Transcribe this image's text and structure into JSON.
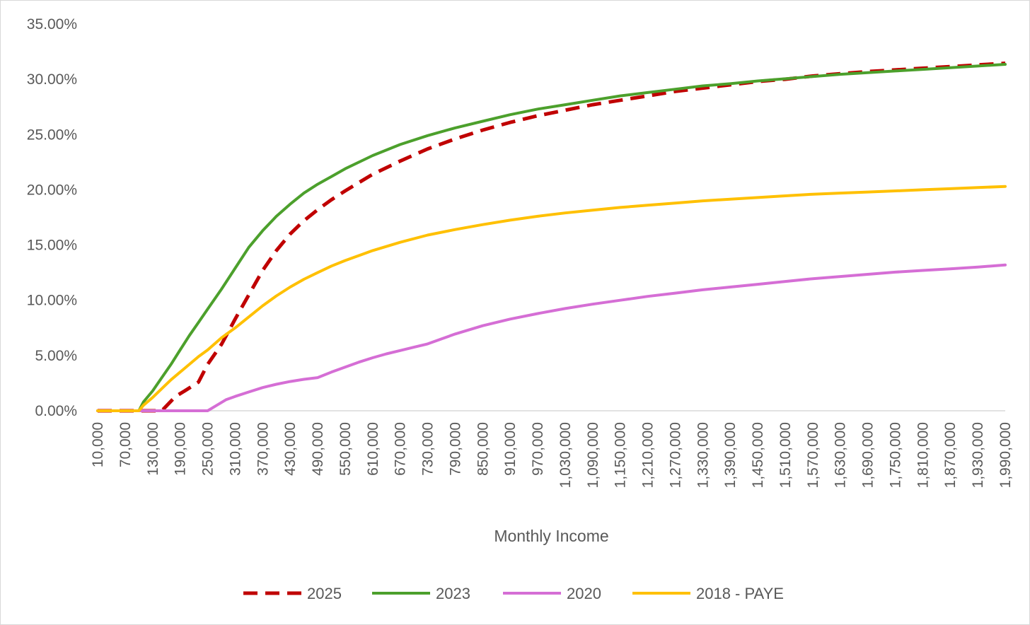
{
  "chart_data": {
    "type": "line",
    "title": "",
    "xlabel": "Monthly Income",
    "ylabel": "",
    "x_tick_labels": [
      "10,000",
      "70,000",
      "130,000",
      "190,000",
      "250,000",
      "310,000",
      "370,000",
      "430,000",
      "490,000",
      "550,000",
      "610,000",
      "670,000",
      "730,000",
      "790,000",
      "850,000",
      "910,000",
      "970,000",
      "1,030,000",
      "1,090,000",
      "1,150,000",
      "1,210,000",
      "1,270,000",
      "1,330,000",
      "1,390,000",
      "1,450,000",
      "1,510,000",
      "1,570,000",
      "1,630,000",
      "1,690,000",
      "1,750,000",
      "1,810,000",
      "1,870,000",
      "1,930,000",
      "1,990,000"
    ],
    "y_tick_labels": [
      "0.00%",
      "5.00%",
      "10.00%",
      "15.00%",
      "20.00%",
      "25.00%",
      "30.00%",
      "35.00%"
    ],
    "xlim": [
      10000,
      1990000
    ],
    "ylim": [
      0,
      35
    ],
    "y_unit": "%",
    "grid": false,
    "legend_position": "bottom",
    "series": [
      {
        "name": "2025",
        "color": "#C00000",
        "dashed": true,
        "points": [
          [
            10000,
            0
          ],
          [
            100000,
            0
          ],
          [
            150000,
            0
          ],
          [
            180000,
            1.3
          ],
          [
            200000,
            1.8
          ],
          [
            230000,
            2.6
          ],
          [
            250000,
            4.2
          ],
          [
            280000,
            6.0
          ],
          [
            310000,
            8.3
          ],
          [
            340000,
            10.5
          ],
          [
            370000,
            12.7
          ],
          [
            400000,
            14.5
          ],
          [
            430000,
            16.0
          ],
          [
            460000,
            17.2
          ],
          [
            490000,
            18.2
          ],
          [
            520000,
            19.1
          ],
          [
            550000,
            19.9
          ],
          [
            610000,
            21.4
          ],
          [
            670000,
            22.6
          ],
          [
            730000,
            23.7
          ],
          [
            790000,
            24.6
          ],
          [
            850000,
            25.4
          ],
          [
            910000,
            26.1
          ],
          [
            970000,
            26.7
          ],
          [
            1030000,
            27.2
          ],
          [
            1090000,
            27.7
          ],
          [
            1150000,
            28.1
          ],
          [
            1210000,
            28.5
          ],
          [
            1270000,
            28.9
          ],
          [
            1330000,
            29.2
          ],
          [
            1390000,
            29.5
          ],
          [
            1450000,
            29.8
          ],
          [
            1510000,
            30.0
          ],
          [
            1570000,
            30.3
          ],
          [
            1630000,
            30.5
          ],
          [
            1690000,
            30.7
          ],
          [
            1750000,
            30.85
          ],
          [
            1810000,
            31.0
          ],
          [
            1870000,
            31.15
          ],
          [
            1930000,
            31.3
          ],
          [
            1990000,
            31.45
          ]
        ]
      },
      {
        "name": "2023",
        "color": "#4CA02C",
        "dashed": false,
        "points": [
          [
            10000,
            0
          ],
          [
            100000,
            0
          ],
          [
            110000,
            0.8
          ],
          [
            130000,
            1.8
          ],
          [
            150000,
            3.0
          ],
          [
            170000,
            4.2
          ],
          [
            190000,
            5.5
          ],
          [
            210000,
            6.8
          ],
          [
            230000,
            8.0
          ],
          [
            250000,
            9.2
          ],
          [
            280000,
            11.0
          ],
          [
            310000,
            12.9
          ],
          [
            340000,
            14.8
          ],
          [
            370000,
            16.3
          ],
          [
            400000,
            17.6
          ],
          [
            430000,
            18.7
          ],
          [
            460000,
            19.7
          ],
          [
            490000,
            20.5
          ],
          [
            520000,
            21.2
          ],
          [
            550000,
            21.9
          ],
          [
            610000,
            23.1
          ],
          [
            670000,
            24.1
          ],
          [
            730000,
            24.9
          ],
          [
            790000,
            25.6
          ],
          [
            850000,
            26.2
          ],
          [
            910000,
            26.8
          ],
          [
            970000,
            27.3
          ],
          [
            1030000,
            27.7
          ],
          [
            1090000,
            28.1
          ],
          [
            1150000,
            28.5
          ],
          [
            1210000,
            28.8
          ],
          [
            1270000,
            29.1
          ],
          [
            1330000,
            29.4
          ],
          [
            1390000,
            29.6
          ],
          [
            1450000,
            29.85
          ],
          [
            1510000,
            30.05
          ],
          [
            1570000,
            30.25
          ],
          [
            1630000,
            30.45
          ],
          [
            1690000,
            30.6
          ],
          [
            1750000,
            30.75
          ],
          [
            1810000,
            30.9
          ],
          [
            1870000,
            31.05
          ],
          [
            1930000,
            31.2
          ],
          [
            1990000,
            31.35
          ]
        ]
      },
      {
        "name": "2020",
        "color": "#D56ED5",
        "dashed": false,
        "points": [
          [
            10000,
            0
          ],
          [
            100000,
            0
          ],
          [
            250000,
            0
          ],
          [
            270000,
            0.5
          ],
          [
            290000,
            1.0
          ],
          [
            310000,
            1.3
          ],
          [
            340000,
            1.7
          ],
          [
            370000,
            2.1
          ],
          [
            400000,
            2.4
          ],
          [
            430000,
            2.65
          ],
          [
            460000,
            2.85
          ],
          [
            490000,
            3.0
          ],
          [
            520000,
            3.5
          ],
          [
            550000,
            3.95
          ],
          [
            580000,
            4.4
          ],
          [
            610000,
            4.8
          ],
          [
            640000,
            5.15
          ],
          [
            670000,
            5.45
          ],
          [
            700000,
            5.75
          ],
          [
            730000,
            6.05
          ],
          [
            760000,
            6.5
          ],
          [
            790000,
            6.95
          ],
          [
            850000,
            7.7
          ],
          [
            910000,
            8.3
          ],
          [
            970000,
            8.8
          ],
          [
            1030000,
            9.25
          ],
          [
            1090000,
            9.65
          ],
          [
            1150000,
            10.0
          ],
          [
            1210000,
            10.35
          ],
          [
            1270000,
            10.65
          ],
          [
            1330000,
            10.95
          ],
          [
            1390000,
            11.2
          ],
          [
            1450000,
            11.45
          ],
          [
            1510000,
            11.7
          ],
          [
            1570000,
            11.95
          ],
          [
            1630000,
            12.15
          ],
          [
            1690000,
            12.35
          ],
          [
            1750000,
            12.55
          ],
          [
            1810000,
            12.7
          ],
          [
            1870000,
            12.85
          ],
          [
            1930000,
            13.0
          ],
          [
            1990000,
            13.2
          ]
        ]
      },
      {
        "name": "2018 - PAYE",
        "color": "#FFC000",
        "dashed": false,
        "points": [
          [
            10000,
            0
          ],
          [
            100000,
            0
          ],
          [
            110000,
            0.5
          ],
          [
            130000,
            1.2
          ],
          [
            150000,
            2.0
          ],
          [
            170000,
            2.8
          ],
          [
            190000,
            3.5
          ],
          [
            210000,
            4.2
          ],
          [
            230000,
            4.9
          ],
          [
            250000,
            5.5
          ],
          [
            280000,
            6.6
          ],
          [
            310000,
            7.5
          ],
          [
            340000,
            8.5
          ],
          [
            370000,
            9.5
          ],
          [
            400000,
            10.4
          ],
          [
            430000,
            11.2
          ],
          [
            460000,
            11.9
          ],
          [
            490000,
            12.5
          ],
          [
            520000,
            13.1
          ],
          [
            550000,
            13.6
          ],
          [
            610000,
            14.5
          ],
          [
            670000,
            15.25
          ],
          [
            730000,
            15.9
          ],
          [
            790000,
            16.4
          ],
          [
            850000,
            16.85
          ],
          [
            910000,
            17.25
          ],
          [
            970000,
            17.6
          ],
          [
            1030000,
            17.9
          ],
          [
            1090000,
            18.15
          ],
          [
            1150000,
            18.4
          ],
          [
            1210000,
            18.6
          ],
          [
            1270000,
            18.8
          ],
          [
            1330000,
            19.0
          ],
          [
            1390000,
            19.15
          ],
          [
            1450000,
            19.3
          ],
          [
            1510000,
            19.45
          ],
          [
            1570000,
            19.6
          ],
          [
            1630000,
            19.7
          ],
          [
            1690000,
            19.8
          ],
          [
            1750000,
            19.9
          ],
          [
            1810000,
            20.0
          ],
          [
            1870000,
            20.1
          ],
          [
            1930000,
            20.2
          ],
          [
            1990000,
            20.3
          ]
        ]
      }
    ]
  }
}
